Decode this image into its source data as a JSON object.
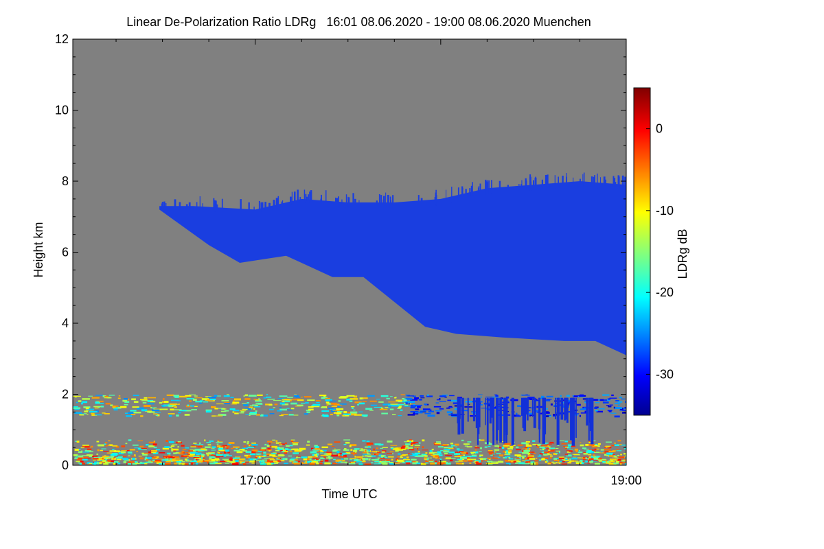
{
  "chart_data": {
    "type": "heatmap",
    "title": "Linear De-Polarization Ratio LDRg   16:01 08.06.2020 - 19:00 08.06.2020 Muenchen",
    "xlabel": "Time UTC",
    "ylabel": "Height km",
    "colorbar_label": "LDRg dB",
    "xlim": [
      "16:01",
      "19:00"
    ],
    "x_ticks": [
      "17:00",
      "18:00",
      "19:00"
    ],
    "ylim": [
      0,
      12
    ],
    "y_ticks": [
      0,
      2,
      4,
      6,
      8,
      10,
      12
    ],
    "colorbar_range": [
      -35,
      5
    ],
    "colorbar_ticks": [
      0,
      -10,
      -20,
      -30
    ],
    "background_color": "#808080",
    "cloud_layer": {
      "description_ldr_db": -30,
      "color": "#1a3ee0",
      "top_km": [
        {
          "t": "16:29",
          "h": 7.3
        },
        {
          "t": "16:40",
          "h": 7.3
        },
        {
          "t": "17:00",
          "h": 7.2
        },
        {
          "t": "17:15",
          "h": 7.5
        },
        {
          "t": "17:30",
          "h": 7.4
        },
        {
          "t": "17:45",
          "h": 7.4
        },
        {
          "t": "18:00",
          "h": 7.5
        },
        {
          "t": "18:15",
          "h": 7.8
        },
        {
          "t": "18:30",
          "h": 7.9
        },
        {
          "t": "18:45",
          "h": 8.0
        },
        {
          "t": "19:00",
          "h": 7.9
        }
      ],
      "base_km": [
        {
          "t": "16:29",
          "h": 7.2
        },
        {
          "t": "16:45",
          "h": 6.2
        },
        {
          "t": "16:55",
          "h": 5.7
        },
        {
          "t": "17:10",
          "h": 5.9
        },
        {
          "t": "17:25",
          "h": 5.3
        },
        {
          "t": "17:35",
          "h": 5.3
        },
        {
          "t": "17:45",
          "h": 4.6
        },
        {
          "t": "17:55",
          "h": 3.9
        },
        {
          "t": "18:05",
          "h": 3.7
        },
        {
          "t": "18:20",
          "h": 3.6
        },
        {
          "t": "18:40",
          "h": 3.5
        },
        {
          "t": "18:50",
          "h": 3.5
        },
        {
          "t": "19:00",
          "h": 3.1
        }
      ]
    },
    "boundary_layer": {
      "upper_band_km": [
        1.4,
        2.0
      ],
      "lower_band_km": [
        0.05,
        0.75
      ],
      "ldr_db_range": [
        -25,
        0
      ]
    }
  }
}
